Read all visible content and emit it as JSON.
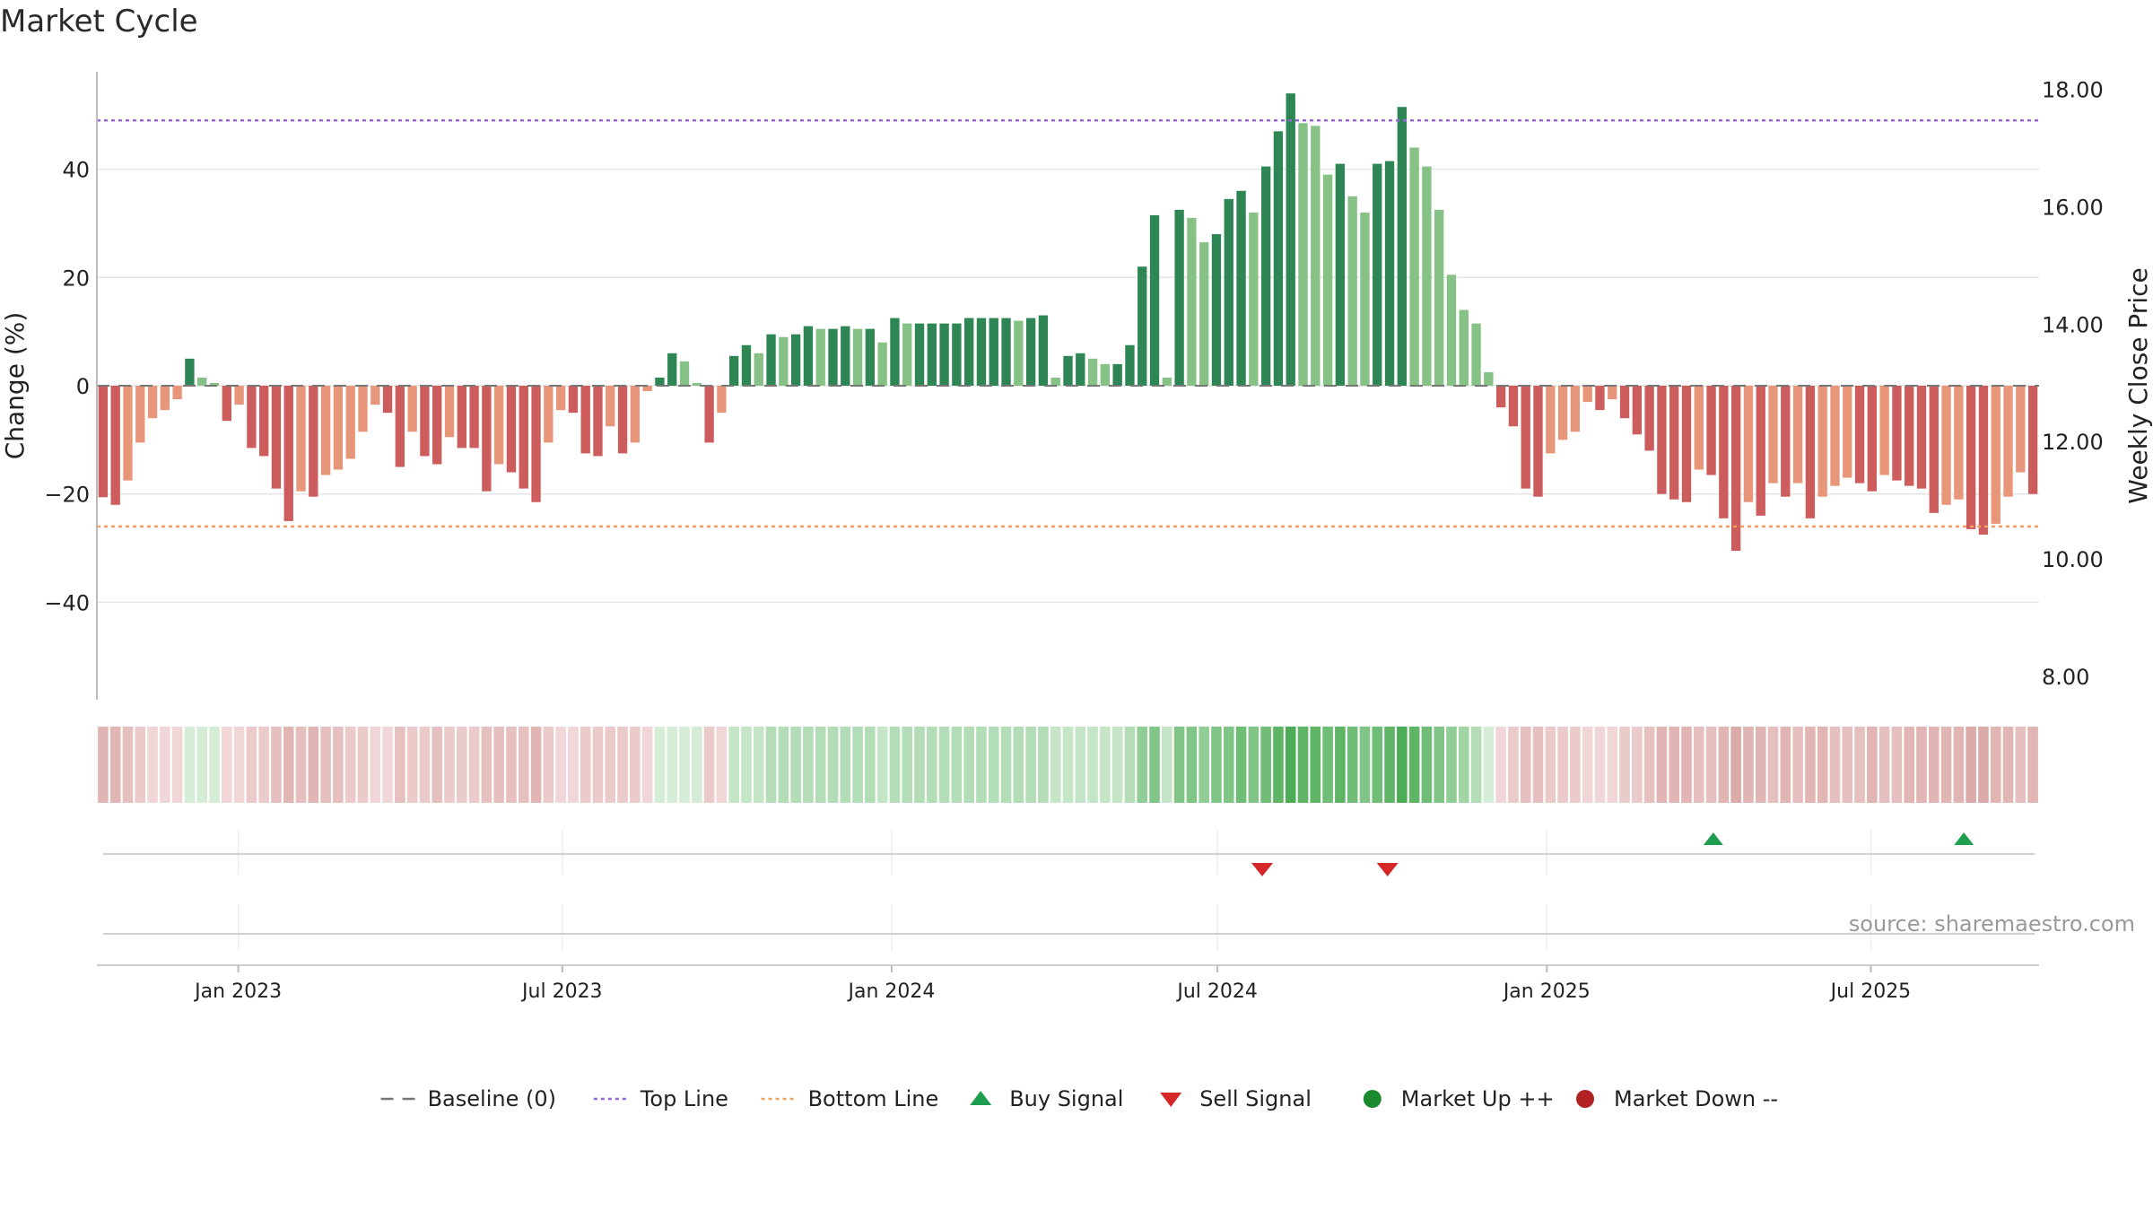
{
  "chart_data": {
    "type": "bar",
    "title": "Market Cycle",
    "ylabel_left": "Change (%)",
    "ylabel_right": "Weekly Close Price",
    "ylim_left": [
      -58,
      58
    ],
    "yticks_left": [
      -40,
      -20,
      0,
      20,
      40
    ],
    "ylim_right": [
      7.6,
      18.3
    ],
    "yticks_right": [
      "8.00",
      "10.00",
      "12.00",
      "14.00",
      "16.00",
      "18.00"
    ],
    "x_start": "2022-10-14",
    "x_end": "2025-10-03",
    "x_ticks": [
      {
        "label": "Jan 2023",
        "date": "2023-01-01"
      },
      {
        "label": "Jul 2023",
        "date": "2023-07-01"
      },
      {
        "label": "Jan 2024",
        "date": "2024-01-01"
      },
      {
        "label": "Jul 2024",
        "date": "2024-07-01"
      },
      {
        "label": "Jan 2025",
        "date": "2025-01-01"
      },
      {
        "label": "Jul 2025",
        "date": "2025-07-01"
      }
    ],
    "top_line": 49,
    "bottom_line": -26,
    "grid": true,
    "values": [
      -20.6,
      -22,
      -17.5,
      -10.5,
      -6,
      -4.5,
      -2.5,
      5,
      1.5,
      0.5,
      -6.5,
      -3.5,
      -11.5,
      -13,
      -19,
      -25,
      -19.5,
      -20.5,
      -16.5,
      -15.5,
      -13.5,
      -8.5,
      -3.5,
      -5,
      -15,
      -8.5,
      -13,
      -14.5,
      -9.5,
      -11.5,
      -11.5,
      -19.5,
      -14.5,
      -16,
      -19,
      -21.5,
      -10.5,
      -4.5,
      -5,
      -12.5,
      -13,
      -7.5,
      -12.5,
      -10.5,
      -1,
      1.5,
      6,
      4.5,
      0.5,
      -10.5,
      -5,
      5.5,
      7.5,
      6,
      9.5,
      9,
      9.5,
      11,
      10.5,
      10.5,
      11,
      10.5,
      10.5,
      8,
      12.5,
      11.5,
      11.5,
      11.5,
      11.5,
      11.5,
      12.5,
      12.5,
      12.5,
      12.5,
      12,
      12.5,
      13,
      1.5,
      5.5,
      6,
      5,
      4,
      4,
      7.5,
      22,
      31.5,
      1.5,
      32.5,
      31,
      26.5,
      28,
      34.5,
      36,
      32,
      40.5,
      47,
      54,
      48.5,
      48,
      39,
      41,
      35,
      32,
      41,
      41.5,
      51.5,
      44,
      40.5,
      32.5,
      20.5,
      14,
      11.5,
      2.5,
      -4,
      -7.5,
      -19,
      -20.5,
      -12.5,
      -10,
      -8.5,
      -3,
      -4.5,
      -2.5,
      -6,
      -9,
      -12,
      -20,
      -21,
      -21.5,
      -15.5,
      -16.5,
      -24.5,
      -30.5,
      -21.5,
      -24,
      -18,
      -20.5,
      -18,
      -24.5,
      -20.5,
      -18.5,
      -17,
      -18,
      -19.5,
      -16.5,
      -17.5,
      -18.5,
      -19,
      -23.5,
      -22,
      -21,
      -26.5,
      -27.5,
      -25.5,
      -20.5,
      -16,
      -20
    ],
    "heatmap_levels": [
      -0.4,
      -0.4,
      -0.3,
      -0.2,
      -0.1,
      -0.1,
      -0.1,
      0.1,
      0.1,
      0.1,
      -0.1,
      -0.1,
      -0.2,
      -0.2,
      -0.3,
      -0.4,
      -0.3,
      -0.4,
      -0.3,
      -0.3,
      -0.2,
      -0.2,
      -0.1,
      -0.1,
      -0.3,
      -0.2,
      -0.2,
      -0.3,
      -0.2,
      -0.2,
      -0.2,
      -0.3,
      -0.3,
      -0.3,
      -0.3,
      -0.4,
      -0.2,
      -0.1,
      -0.1,
      -0.2,
      -0.2,
      -0.2,
      -0.2,
      -0.2,
      -0.1,
      0.1,
      0.1,
      0.1,
      0.1,
      -0.2,
      -0.1,
      0.2,
      0.2,
      0.2,
      0.3,
      0.3,
      0.3,
      0.3,
      0.3,
      0.3,
      0.3,
      0.3,
      0.3,
      0.2,
      0.3,
      0.3,
      0.3,
      0.3,
      0.3,
      0.3,
      0.3,
      0.3,
      0.3,
      0.3,
      0.3,
      0.3,
      0.3,
      0.2,
      0.2,
      0.2,
      0.2,
      0.2,
      0.2,
      0.3,
      0.5,
      0.6,
      0.2,
      0.6,
      0.6,
      0.5,
      0.6,
      0.6,
      0.7,
      0.6,
      0.7,
      0.8,
      0.9,
      0.8,
      0.8,
      0.7,
      0.8,
      0.7,
      0.6,
      0.7,
      0.8,
      0.9,
      0.8,
      0.7,
      0.6,
      0.5,
      0.4,
      0.3,
      0.1,
      -0.1,
      -0.2,
      -0.3,
      -0.3,
      -0.2,
      -0.2,
      -0.2,
      -0.1,
      -0.1,
      -0.1,
      -0.2,
      -0.2,
      -0.3,
      -0.4,
      -0.4,
      -0.4,
      -0.3,
      -0.3,
      -0.4,
      -0.5,
      -0.4,
      -0.4,
      -0.3,
      -0.4,
      -0.3,
      -0.4,
      -0.4,
      -0.3,
      -0.3,
      -0.3,
      -0.4,
      -0.3,
      -0.3,
      -0.4,
      -0.4,
      -0.4,
      -0.4,
      -0.4,
      -0.5,
      -0.5,
      -0.4,
      -0.4,
      -0.3,
      -0.4
    ],
    "buy_signals": [
      "2025-04-04",
      "2025-08-22"
    ],
    "sell_signals": [
      "2024-07-26",
      "2024-10-04"
    ],
    "legend": {
      "position": "bottom-center",
      "entries": [
        {
          "label": "Baseline (0)",
          "style": "dash",
          "color": "#777777"
        },
        {
          "label": "Top Line",
          "style": "dot",
          "color": "#9467d8"
        },
        {
          "label": "Bottom Line",
          "style": "dot",
          "color": "#f0a060"
        },
        {
          "label": "Buy Signal",
          "style": "triangle-up",
          "color": "#1e9e4e"
        },
        {
          "label": "Sell Signal",
          "style": "triangle-down",
          "color": "#d62728"
        },
        {
          "label": "Market Up ++",
          "style": "circle",
          "color": "#1b8a2e"
        },
        {
          "label": "Market Down --",
          "style": "circle",
          "color": "#b22222"
        }
      ]
    },
    "source_note": "source: sharemaestro.com",
    "colors": {
      "up_strong": "#2e8655",
      "up_light": "#86c186",
      "down_strong": "#cd5c5c",
      "down_light": "#e8967a",
      "top_line": "#9467d8",
      "bottom_line": "#f0a060",
      "buy": "#1e9e4e",
      "sell": "#d62728"
    }
  }
}
